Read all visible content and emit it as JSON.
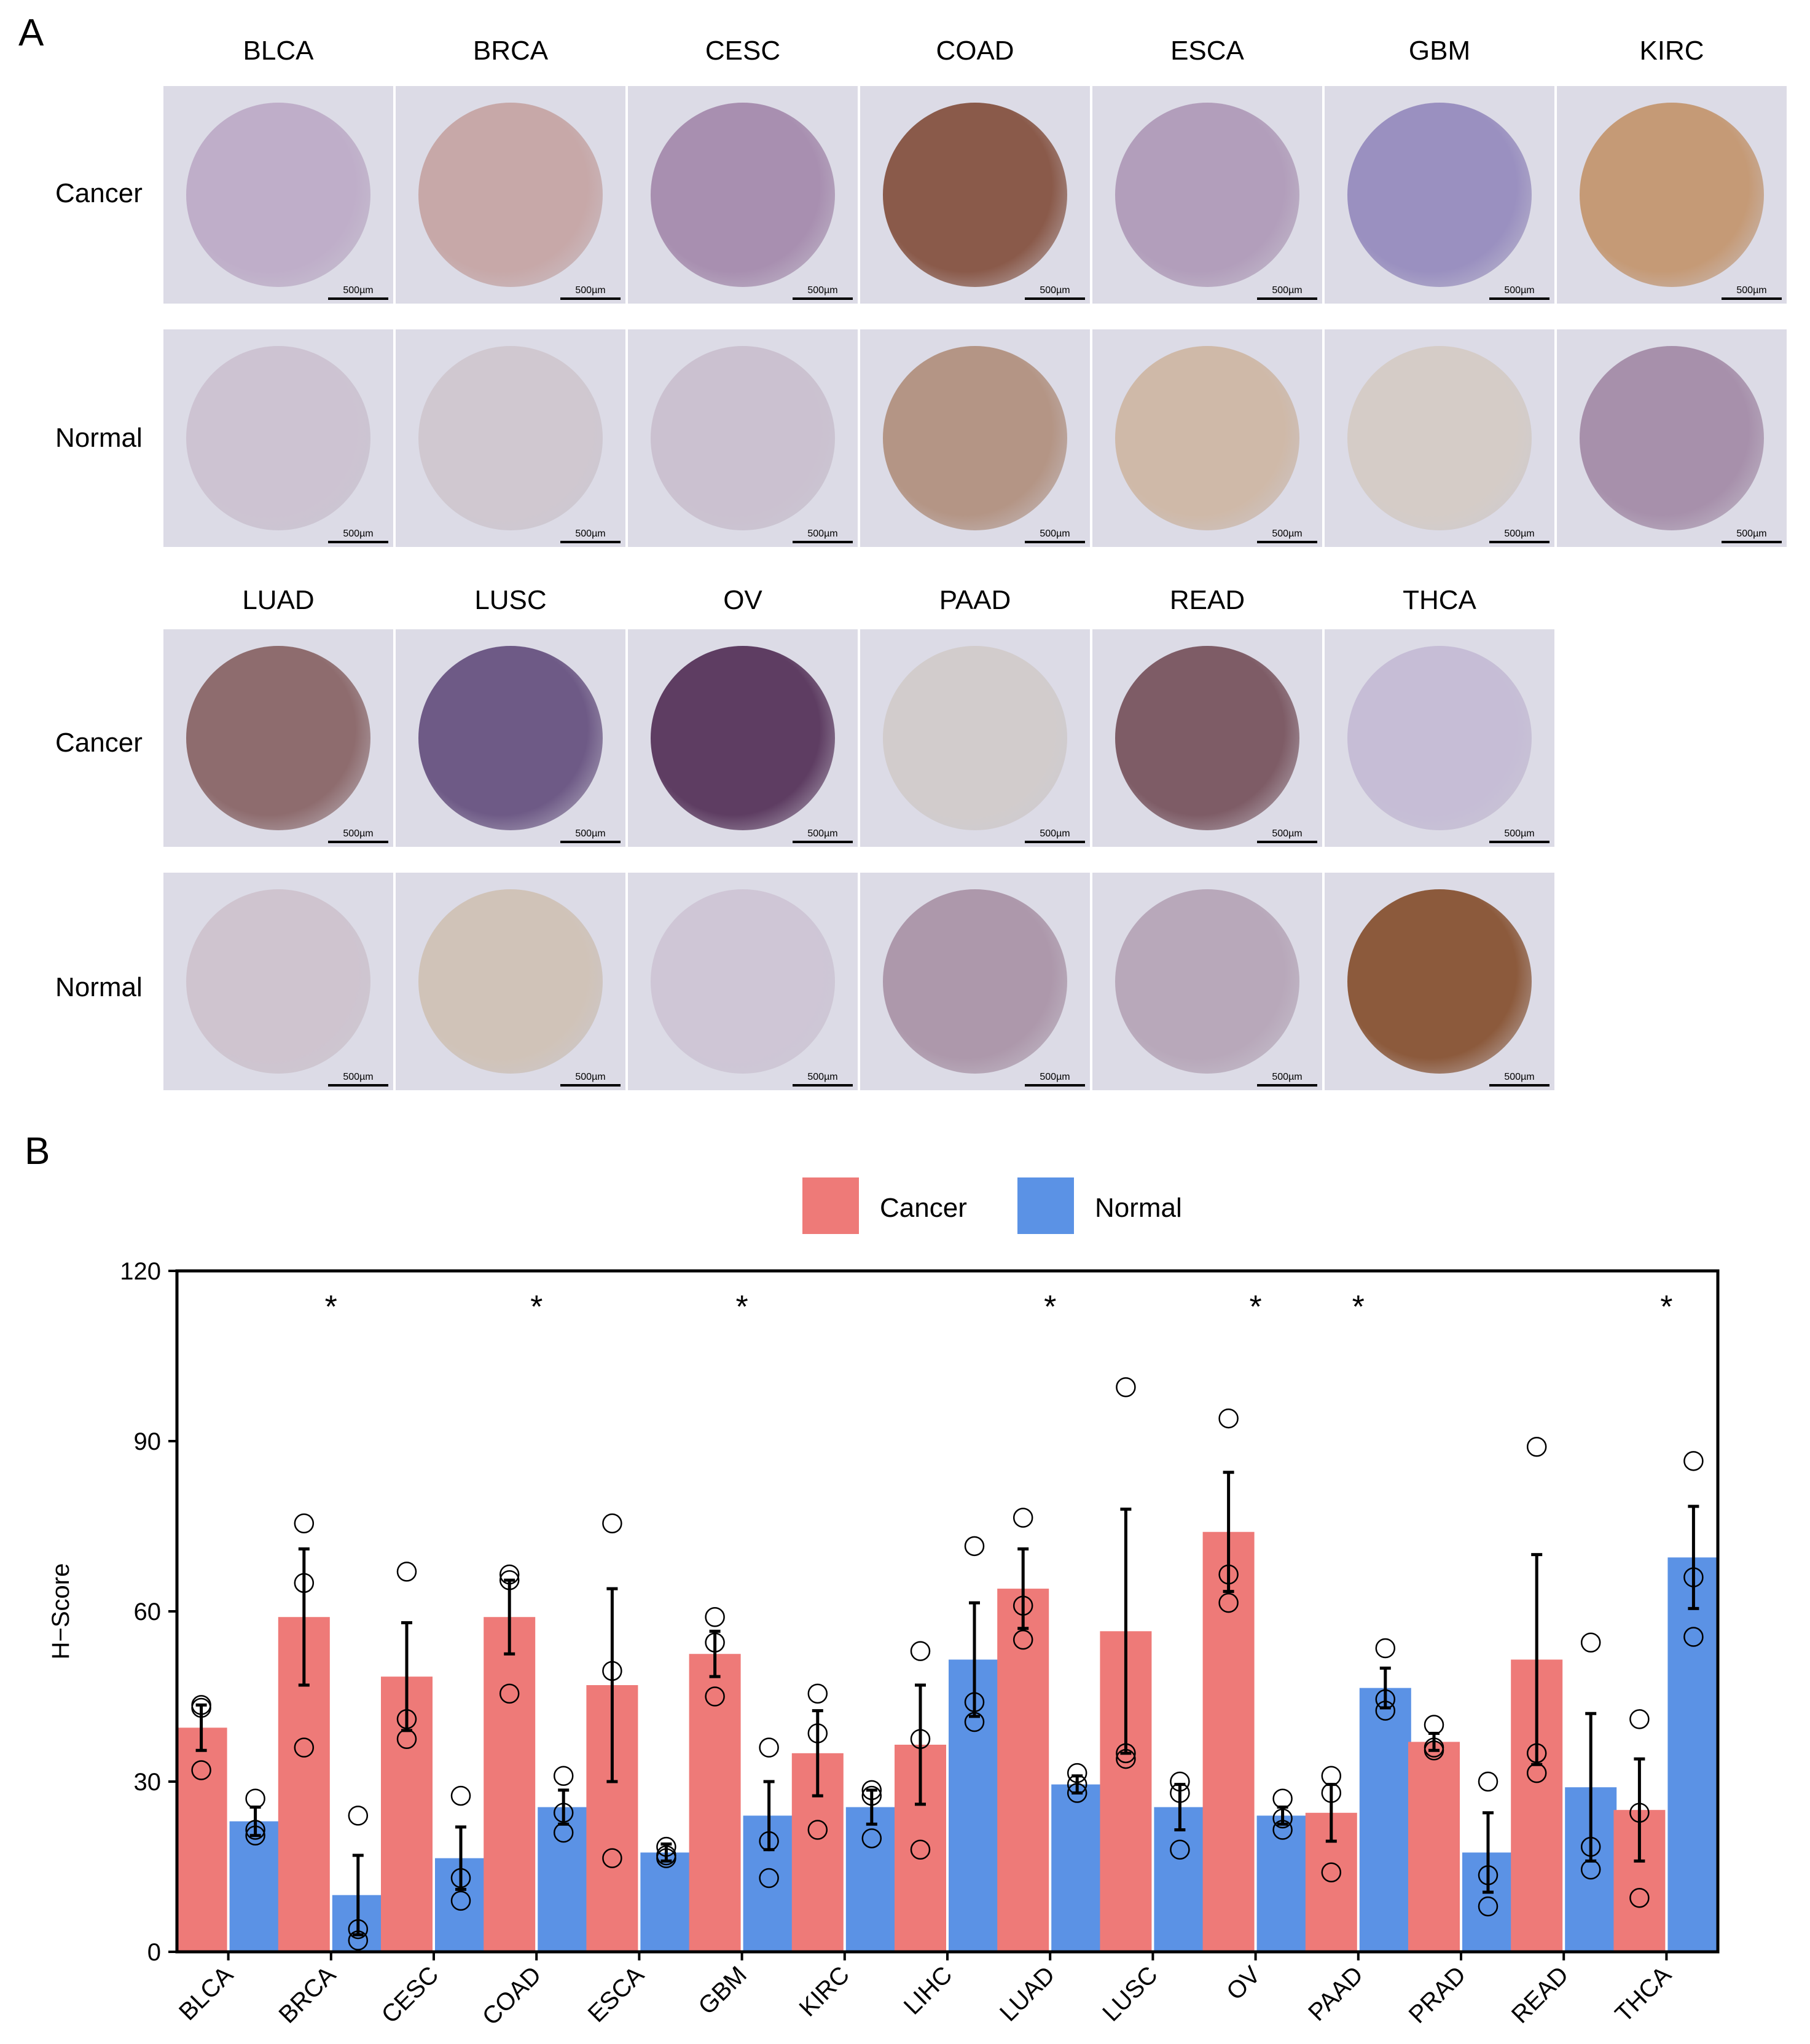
{
  "panels": {
    "a": "A",
    "b": "B"
  },
  "ihc": {
    "row_labels": {
      "cancer": "Cancer",
      "normal": "Normal"
    },
    "scale_label": "500µm",
    "block1": [
      {
        "name": "BLCA",
        "cancer_color": "#bfaec9",
        "normal_color": "#cdc3d2"
      },
      {
        "name": "BRCA",
        "cancer_color": "#c7a8a8",
        "normal_color": "#d0c8d0"
      },
      {
        "name": "CESC",
        "cancer_color": "#a88fb0",
        "normal_color": "#cbc1d0"
      },
      {
        "name": "COAD",
        "cancer_color": "#8a5a4a",
        "normal_color": "#b49585"
      },
      {
        "name": "ESCA",
        "cancer_color": "#b29ebb",
        "normal_color": "#cfb9a8"
      },
      {
        "name": "GBM",
        "cancer_color": "#9a90c0",
        "normal_color": "#d5ccc7"
      },
      {
        "name": "KIRC",
        "cancer_color": "#c59a76",
        "normal_color": "#a790ab"
      }
    ],
    "block2": [
      {
        "name": "LUAD",
        "cancer_color": "#8e6c6e",
        "normal_color": "#cfc4cf"
      },
      {
        "name": "LUSC",
        "cancer_color": "#6e5a86",
        "normal_color": "#d0c3b8"
      },
      {
        "name": "OV",
        "cancer_color": "#5e3d62",
        "normal_color": "#cfc6d6"
      },
      {
        "name": "PAAD",
        "cancer_color": "#d2cccc",
        "normal_color": "#ad98ab"
      },
      {
        "name": "READ",
        "cancer_color": "#7e5c66",
        "normal_color": "#b8a8ba"
      },
      {
        "name": "THCA",
        "cancer_color": "#c6bdd6",
        "normal_color": "#8c5a3c"
      }
    ]
  },
  "legend": {
    "cancer": "Cancer",
    "normal": "Normal"
  },
  "colors": {
    "cancer": "#ee7a78",
    "normal": "#5b92e5"
  },
  "chart_data": {
    "type": "bar",
    "ylabel": "H−Score",
    "ylim": [
      0,
      120
    ],
    "yticks": [
      0,
      30,
      60,
      90,
      120
    ],
    "legend_position": "top",
    "categories": [
      "BLCA",
      "BRCA",
      "CESC",
      "COAD",
      "ESCA",
      "GBM",
      "KIRC",
      "LIHC",
      "LUAD",
      "LUSC",
      "OV",
      "PAAD",
      "PRAD",
      "READ",
      "THCA"
    ],
    "significance": [
      "",
      "*",
      "",
      "*",
      "",
      "*",
      "",
      "",
      "*",
      "",
      "*",
      "*",
      "",
      "",
      "*"
    ],
    "series": [
      {
        "name": "Cancer",
        "values": [
          39.5,
          59,
          48.5,
          59,
          47,
          52.5,
          35,
          36.5,
          64,
          56.5,
          74,
          24.5,
          37,
          51.5,
          25
        ],
        "sem": [
          4,
          12,
          9.5,
          6.5,
          17,
          4,
          7.5,
          10.5,
          7,
          21.5,
          10.5,
          5,
          1.5,
          18.5,
          9
        ],
        "points": [
          [
            43,
            43.5,
            32
          ],
          [
            75.5,
            65,
            36
          ],
          [
            67,
            41,
            37.5
          ],
          [
            66.5,
            65.5,
            45.5
          ],
          [
            75.5,
            49.5,
            16.5
          ],
          [
            59,
            54.5,
            45
          ],
          [
            45.5,
            38.5,
            21.5
          ],
          [
            53,
            37.5,
            18
          ],
          [
            76.5,
            61,
            55
          ],
          [
            99.5,
            35,
            34
          ],
          [
            94,
            66.5,
            61.5
          ],
          [
            31,
            28,
            14
          ],
          [
            40,
            36,
            35.5
          ],
          [
            89,
            35,
            31.5
          ],
          [
            41,
            24.5,
            9.5
          ]
        ]
      },
      {
        "name": "Normal",
        "values": [
          23,
          10,
          16.5,
          25.5,
          17.5,
          24,
          25.5,
          51.5,
          29.5,
          25.5,
          24,
          46.5,
          17.5,
          29,
          69.5
        ],
        "sem": [
          2.5,
          7,
          5.5,
          3,
          1.5,
          6,
          3,
          10,
          1.5,
          4,
          1.5,
          3.5,
          7,
          13,
          9
        ],
        "points": [
          [
            27,
            21.5,
            20.5
          ],
          [
            24,
            4,
            2
          ],
          [
            27.5,
            13,
            9
          ],
          [
            31,
            24.5,
            21
          ],
          [
            18.5,
            17,
            16.5
          ],
          [
            36,
            19.5,
            13
          ],
          [
            28.5,
            27.5,
            20
          ],
          [
            71.5,
            44,
            40.5
          ],
          [
            31.5,
            29.5,
            28
          ],
          [
            30,
            28,
            18
          ],
          [
            27,
            23.5,
            21.5
          ],
          [
            53.5,
            44.5,
            42.5
          ],
          [
            30,
            13.5,
            8
          ],
          [
            54.5,
            18.5,
            14.5
          ],
          [
            86.5,
            66,
            55.5
          ]
        ]
      }
    ]
  }
}
